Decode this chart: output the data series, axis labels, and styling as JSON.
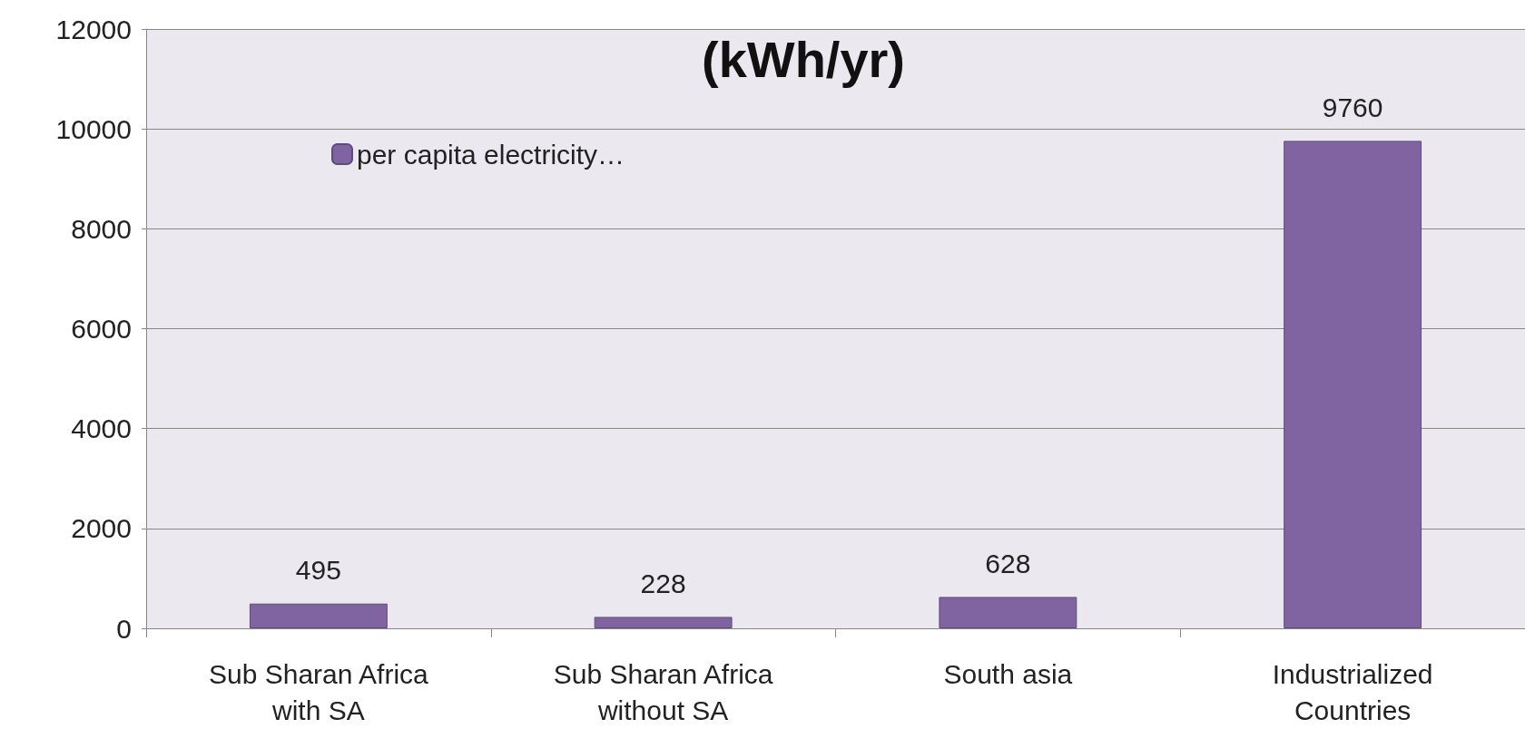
{
  "chart_data": {
    "type": "bar",
    "title": "(kWh/yr)",
    "categories": [
      "Sub Sharan Africa\nwith SA",
      "Sub Sharan Africa\nwithout SA",
      "South asia",
      "Industrialized\nCountries"
    ],
    "series": [
      {
        "name": "per capita electricity…",
        "color": "#8064a2",
        "values": [
          495,
          228,
          628,
          9760
        ]
      }
    ],
    "data_labels": true,
    "ylim": [
      0,
      12000
    ],
    "yticks": [
      0,
      2000,
      4000,
      6000,
      8000,
      10000,
      12000
    ],
    "grid": "y",
    "legend": "top left"
  }
}
